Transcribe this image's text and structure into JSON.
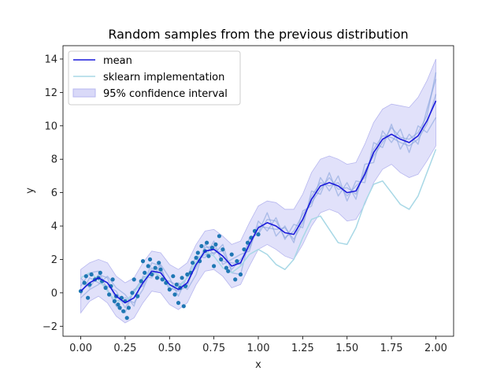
{
  "chart_data": {
    "type": "line",
    "title": "Random samples from the previous distribution",
    "xlabel": "x",
    "ylabel": "y",
    "xlim": [
      -0.1,
      2.1
    ],
    "ylim": [
      -2.6,
      14.8
    ],
    "xticks": [
      0.0,
      0.25,
      0.5,
      0.75,
      1.0,
      1.25,
      1.5,
      1.75,
      2.0
    ],
    "xtick_labels": [
      "0.00",
      "0.25",
      "0.50",
      "0.75",
      "1.00",
      "1.25",
      "1.50",
      "1.75",
      "2.00"
    ],
    "yticks": [
      -2,
      0,
      2,
      4,
      6,
      8,
      10,
      12,
      14
    ],
    "ytick_labels": [
      "−2",
      "0",
      "2",
      "4",
      "6",
      "8",
      "10",
      "12",
      "14"
    ],
    "grid": false,
    "legend_position": "upper-left",
    "colors": {
      "mean": "#1a1adb",
      "sklearn": "#a8d8e6",
      "ci_fill": "#c9c9f5",
      "ci_edge": "#b7b7ef",
      "samples": "#7f9fd8",
      "points": "#1f77b4"
    },
    "series": [
      {
        "name": "mean",
        "x": [
          0.0,
          0.05,
          0.1,
          0.15,
          0.2,
          0.25,
          0.3,
          0.35,
          0.4,
          0.45,
          0.5,
          0.55,
          0.6,
          0.65,
          0.7,
          0.75,
          0.8,
          0.85,
          0.9,
          0.95,
          1.0,
          1.05,
          1.1,
          1.15,
          1.2,
          1.25,
          1.3,
          1.35,
          1.4,
          1.45,
          1.5,
          1.55,
          1.6,
          1.65,
          1.7,
          1.75,
          1.8,
          1.85,
          1.9,
          1.95,
          2.0
        ],
        "y": [
          0.1,
          0.6,
          0.9,
          0.6,
          -0.2,
          -0.6,
          -0.3,
          0.6,
          1.3,
          1.2,
          0.5,
          0.2,
          0.6,
          1.7,
          2.5,
          2.6,
          2.2,
          1.6,
          1.8,
          2.9,
          3.9,
          4.2,
          4.0,
          3.6,
          3.5,
          4.4,
          5.6,
          6.4,
          6.6,
          6.4,
          6.0,
          6.1,
          7.1,
          8.4,
          9.2,
          9.5,
          9.2,
          9.0,
          9.4,
          10.3,
          11.5
        ]
      },
      {
        "name": "sklearn implementation",
        "x": [
          0.0,
          0.05,
          0.1,
          0.15,
          0.2,
          0.25,
          0.3,
          0.35,
          0.4,
          0.45,
          0.5,
          0.55,
          0.6,
          0.65,
          0.7,
          0.75,
          0.8,
          0.85,
          0.9,
          0.95,
          1.0,
          1.05,
          1.1,
          1.15,
          1.2,
          1.25,
          1.3,
          1.35,
          1.4,
          1.45,
          1.5,
          1.55,
          1.6,
          1.65,
          1.7,
          1.75,
          1.8,
          1.85,
          1.9,
          1.95,
          2.0
        ],
        "y": [
          0.9,
          1.2,
          0.8,
          0.1,
          -0.5,
          -0.5,
          0.0,
          0.8,
          1.3,
          1.0,
          0.4,
          0.3,
          0.9,
          1.9,
          2.5,
          2.2,
          1.5,
          1.2,
          1.6,
          2.3,
          2.6,
          2.3,
          1.7,
          1.4,
          2.0,
          3.3,
          4.4,
          4.6,
          3.8,
          3.0,
          2.9,
          3.9,
          5.4,
          6.5,
          6.7,
          6.0,
          5.3,
          5.0,
          5.8,
          7.2,
          8.6
        ]
      }
    ],
    "confidence_interval": {
      "name": "95% confidence interval",
      "x": [
        0.0,
        0.05,
        0.1,
        0.15,
        0.2,
        0.25,
        0.3,
        0.35,
        0.4,
        0.45,
        0.5,
        0.55,
        0.6,
        0.65,
        0.7,
        0.75,
        0.8,
        0.85,
        0.9,
        0.95,
        1.0,
        1.05,
        1.1,
        1.15,
        1.2,
        1.25,
        1.3,
        1.35,
        1.4,
        1.45,
        1.5,
        1.55,
        1.6,
        1.65,
        1.7,
        1.75,
        1.8,
        1.85,
        1.9,
        1.95,
        2.0
      ],
      "lower": [
        -1.2,
        -0.5,
        -0.2,
        -0.6,
        -1.4,
        -1.8,
        -1.5,
        -0.6,
        0.1,
        0.0,
        -0.7,
        -1.0,
        -0.6,
        0.5,
        1.3,
        1.4,
        1.0,
        0.3,
        0.5,
        1.6,
        2.6,
        2.9,
        2.6,
        2.2,
        2.0,
        2.9,
        4.0,
        4.8,
        5.0,
        4.8,
        4.3,
        4.4,
        5.3,
        6.6,
        7.4,
        7.7,
        7.2,
        6.9,
        7.1,
        7.9,
        8.8
      ],
      "upper": [
        1.4,
        1.8,
        2.0,
        1.8,
        1.0,
        0.6,
        0.9,
        1.8,
        2.5,
        2.4,
        1.7,
        1.4,
        1.8,
        2.9,
        3.7,
        3.8,
        3.4,
        2.9,
        3.1,
        4.2,
        5.2,
        5.5,
        5.4,
        5.0,
        5.0,
        5.9,
        7.2,
        8.0,
        8.2,
        8.0,
        7.7,
        7.8,
        8.9,
        10.2,
        11.0,
        11.3,
        11.2,
        11.1,
        11.7,
        12.7,
        14.0
      ]
    },
    "samples": [
      {
        "x": [
          0.0,
          0.05,
          0.1,
          0.15,
          0.2,
          0.25,
          0.3,
          0.35,
          0.4,
          0.45,
          0.5,
          0.55,
          0.6,
          0.65,
          0.7,
          0.75,
          0.8,
          0.85,
          0.9,
          0.95,
          1.0,
          1.05,
          1.1,
          1.15,
          1.2,
          1.25,
          1.3,
          1.35,
          1.4,
          1.45,
          1.5,
          1.55,
          1.6,
          1.65,
          1.7,
          1.75,
          1.8,
          1.85,
          1.9,
          1.95,
          2.0
        ],
        "y": [
          0.4,
          1.2,
          1.3,
          0.2,
          -0.8,
          -1.2,
          0.2,
          0.4,
          1.8,
          1.6,
          0.1,
          0.6,
          0.2,
          1.1,
          2.9,
          2.3,
          2.9,
          1.2,
          1.1,
          3.2,
          3.6,
          4.8,
          3.4,
          4.0,
          3.0,
          4.9,
          5.2,
          6.9,
          6.1,
          7.0,
          5.5,
          6.7,
          6.6,
          9.0,
          8.7,
          10.1,
          8.6,
          9.5,
          8.9,
          11.0,
          12.8
        ]
      },
      {
        "x": [
          0.0,
          0.05,
          0.1,
          0.15,
          0.2,
          0.25,
          0.3,
          0.35,
          0.4,
          0.45,
          0.5,
          0.55,
          0.6,
          0.65,
          0.7,
          0.75,
          0.8,
          0.85,
          0.9,
          0.95,
          1.0,
          1.05,
          1.1,
          1.15,
          1.2,
          1.25,
          1.3,
          1.35,
          1.4,
          1.45,
          1.5,
          1.55,
          1.6,
          1.65,
          1.7,
          1.75,
          1.8,
          1.85,
          1.9,
          1.95,
          2.0
        ],
        "y": [
          -0.3,
          0.2,
          0.5,
          1.0,
          0.3,
          -0.1,
          -0.8,
          1.0,
          0.9,
          1.7,
          0.9,
          -0.2,
          1.0,
          2.2,
          2.1,
          3.1,
          1.7,
          2.0,
          2.3,
          2.5,
          4.3,
          3.7,
          4.5,
          3.2,
          4.1,
          3.9,
          6.1,
          5.9,
          7.2,
          5.8,
          6.6,
          5.6,
          7.7,
          7.8,
          9.7,
          9.0,
          9.8,
          8.4,
          10.0,
          9.6,
          10.5
        ]
      },
      {
        "x": [
          0.0,
          0.05,
          0.1,
          0.15,
          0.2,
          0.25,
          0.3,
          0.35,
          0.4,
          0.45,
          0.5,
          0.55,
          0.6,
          0.65,
          0.7,
          0.75,
          0.8,
          0.85,
          0.9,
          0.95,
          1.0,
          1.05,
          1.1,
          1.15,
          1.2,
          1.25,
          1.3,
          1.35,
          1.4,
          1.45,
          1.5,
          1.55,
          1.6,
          1.65,
          1.7,
          1.75,
          1.8,
          1.85,
          1.9,
          1.95,
          2.0
        ],
        "y": [
          0.9,
          0.3,
          1.1,
          0.9,
          -0.5,
          -0.3,
          -0.6,
          0.2,
          1.5,
          0.8,
          0.7,
          0.4,
          0.9,
          1.5,
          2.7,
          2.8,
          1.9,
          1.8,
          1.7,
          3.3,
          3.5,
          4.4,
          4.3,
          3.3,
          3.7,
          4.7,
          5.4,
          6.2,
          6.9,
          6.2,
          6.3,
          5.9,
          7.3,
          8.2,
          9.0,
          9.9,
          9.3,
          9.2,
          9.6,
          10.6,
          13.2
        ]
      },
      {
        "x": [
          0.0,
          0.05,
          0.1,
          0.15,
          0.2,
          0.25,
          0.3,
          0.35,
          0.4,
          0.45,
          0.5,
          0.55,
          0.6,
          0.65,
          0.7,
          0.75,
          0.8,
          0.85,
          0.9,
          0.95,
          1.0,
          1.05,
          1.1,
          1.15,
          1.2,
          1.25,
          1.3,
          1.35,
          1.4,
          1.45,
          1.5,
          1.55,
          1.6,
          1.65,
          1.7,
          1.75,
          1.8,
          1.85,
          1.9,
          1.95,
          2.0
        ],
        "y": [
          -0.1,
          0.9,
          0.6,
          0.4,
          0.1,
          -0.9,
          0.1,
          0.9,
          1.1,
          1.4,
          0.3,
          0.1,
          0.4,
          1.9,
          2.3,
          2.4,
          2.5,
          1.4,
          2.0,
          2.7,
          4.0,
          3.9,
          3.8,
          3.9,
          3.2,
          4.2,
          5.8,
          6.6,
          6.4,
          6.6,
          5.8,
          6.4,
          6.9,
          8.6,
          9.4,
          9.3,
          9.0,
          8.8,
          9.2,
          10.1,
          11.9
        ]
      }
    ],
    "points": {
      "x": [
        0.0,
        0.02,
        0.03,
        0.04,
        0.05,
        0.06,
        0.08,
        0.1,
        0.11,
        0.12,
        0.14,
        0.16,
        0.17,
        0.18,
        0.19,
        0.2,
        0.21,
        0.22,
        0.23,
        0.24,
        0.25,
        0.26,
        0.27,
        0.29,
        0.3,
        0.32,
        0.34,
        0.35,
        0.36,
        0.38,
        0.39,
        0.4,
        0.42,
        0.43,
        0.44,
        0.45,
        0.46,
        0.48,
        0.5,
        0.52,
        0.53,
        0.54,
        0.55,
        0.56,
        0.57,
        0.58,
        0.59,
        0.6,
        0.62,
        0.63,
        0.65,
        0.66,
        0.67,
        0.68,
        0.7,
        0.71,
        0.72,
        0.74,
        0.75,
        0.76,
        0.78,
        0.79,
        0.8,
        0.82,
        0.83,
        0.85,
        0.87,
        0.88,
        0.9,
        0.92,
        0.94,
        0.96,
        0.98,
        1.0
      ],
      "y": [
        0.1,
        0.6,
        1.0,
        -0.3,
        0.5,
        1.1,
        0.8,
        0.9,
        1.2,
        0.7,
        0.3,
        -0.1,
        0.4,
        0.8,
        -0.5,
        -0.2,
        -0.7,
        -0.9,
        -0.3,
        -1.1,
        -0.5,
        -1.5,
        -0.9,
        0.0,
        0.8,
        -0.2,
        0.7,
        1.9,
        1.2,
        1.6,
        2.0,
        1.1,
        1.5,
        0.9,
        1.8,
        1.4,
        0.8,
        0.6,
        0.2,
        1.0,
        -0.1,
        0.5,
        -0.6,
        0.3,
        0.9,
        -0.8,
        0.4,
        1.1,
        1.2,
        1.8,
        2.1,
        2.4,
        1.9,
        2.8,
        2.5,
        3.0,
        2.2,
        2.7,
        1.6,
        2.9,
        3.4,
        2.0,
        2.6,
        1.5,
        1.3,
        2.3,
        0.8,
        1.9,
        1.1,
        2.6,
        3.0,
        3.3,
        3.7,
        3.5
      ]
    }
  }
}
